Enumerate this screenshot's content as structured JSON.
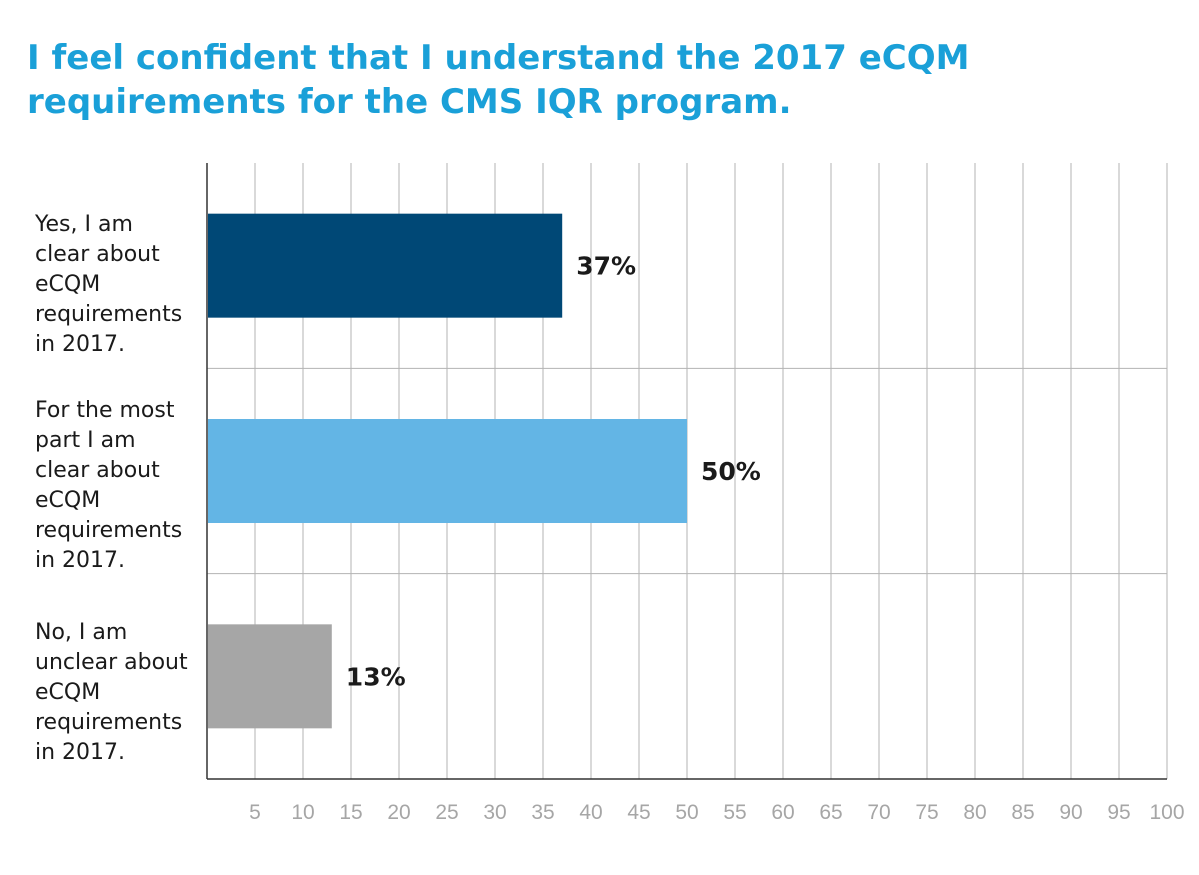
{
  "chart_data": {
    "type": "bar",
    "orientation": "horizontal",
    "title_lines": [
      "I feel confident that I understand the 2017 eCQM",
      "requirements for the CMS IQR program."
    ],
    "categories": [
      {
        "lines": [
          "Yes, I am",
          "clear about",
          "eCQM",
          "requirements",
          "in 2017."
        ],
        "value": 37,
        "value_label": "37%",
        "color": "#004876"
      },
      {
        "lines": [
          "For the most",
          "part I am",
          "clear about",
          "eCQM",
          "requirements",
          "in 2017."
        ],
        "value": 50,
        "value_label": "50%",
        "color": "#63b5e5"
      },
      {
        "lines": [
          "No, I am",
          "unclear about",
          "eCQM",
          "requirements",
          "in 2017."
        ],
        "value": 13,
        "value_label": "13%",
        "color": "#a6a6a6"
      }
    ],
    "x_ticks": [
      "5",
      "10",
      "15",
      "20",
      "25",
      "30",
      "35",
      "40",
      "45",
      "50",
      "55",
      "60",
      "65",
      "70",
      "75",
      "80",
      "85",
      "90",
      "95",
      "100"
    ],
    "xlim": [
      0,
      100
    ],
    "grid": true,
    "legend": "none"
  }
}
